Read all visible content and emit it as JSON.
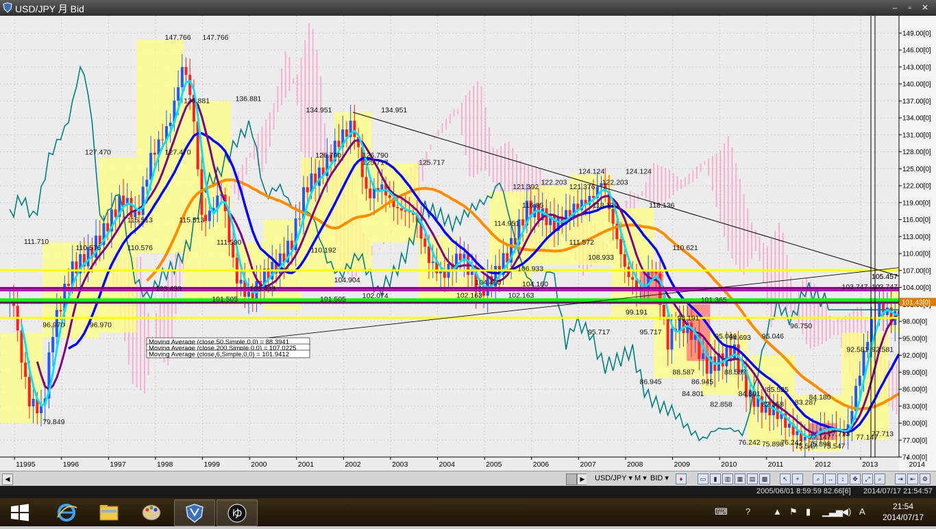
{
  "window": {
    "title": "USD/JPY 月 Bid",
    "btn_min": "‒",
    "btn_restore": "▫",
    "btn_close": "✕"
  },
  "chart_data": {
    "type": "candlestick",
    "symbol": "USD/JPY",
    "timeframe": "月",
    "price_side": "Bid",
    "current_price_label": "101.43[0]",
    "y_ticks": [
      "149.00[0]",
      "146.00[0]",
      "143.00[0]",
      "140.00[0]",
      "137.00[0]",
      "134.00[0]",
      "131.00[0]",
      "128.00[0]",
      "125.00[0]",
      "122.00[0]",
      "119.00[0]",
      "116.00[0]",
      "113.00[0]",
      "110.00[0]",
      "107.00[0]",
      "104.00[0]",
      "101.00[0]",
      "98.00[0]",
      "95.00[0]",
      "92.00[0]",
      "89.00[0]",
      "86.00[0]",
      "83.00[0]",
      "80.00[0]",
      "77.00[0]",
      "74.00[0]"
    ],
    "x_ticks": [
      "11995",
      "1996",
      "1997",
      "1998",
      "1999",
      "2000",
      "2001",
      "2002",
      "2003",
      "2004",
      "2005",
      "2006",
      "2007",
      "2008",
      "2009",
      "2010",
      "2011",
      "2012",
      "2013",
      "2014"
    ],
    "ylim": [
      74,
      150
    ],
    "price_labels": [
      "147.766",
      "147.766",
      "136.881",
      "136.881",
      "127.470",
      "127.470",
      "134.951",
      "134.951",
      "126.790",
      "126.790",
      "125.717",
      "125.717",
      "124.124",
      "124.124",
      "122.203",
      "122.203",
      "121.392",
      "121.376",
      "118.136",
      "118.136",
      "116.85",
      "115.513",
      "115.513",
      "114.951",
      "111.710",
      "111.590",
      "111.572",
      "110.621",
      "110.576",
      "110.576",
      "110.192",
      "108.933",
      "106.933",
      "105.457",
      "105.457",
      "103.747",
      "103.747",
      "103.433",
      "103.433",
      "101.505",
      "101.505",
      "101.365",
      "102.074",
      "102.163",
      "102.163",
      "104.160",
      "104.460",
      "104.904",
      "99.191",
      "98.191",
      "96.970",
      "96.970",
      "96.750",
      "95.717",
      "95.717",
      "95.046",
      "95.046",
      "94.693",
      "92.581",
      "92.581",
      "88.587",
      "88.587",
      "86.945",
      "86.945",
      "85.525",
      "84.801",
      "84.801",
      "84.180",
      "83.287",
      "82.858",
      "82.858",
      "79.849",
      "77.713",
      "77.713",
      "77.147",
      "77.147",
      "76.242",
      "76.242",
      "75.898",
      "75.898",
      "75.547",
      "75.547"
    ],
    "tooltips": [
      "Moving Average (close,50,Simple,0,0) = 88.3941",
      "Moving Average (close,200,Simple,0,0) = 107.0225",
      "Moving Average (close,6,Simple,0,0) = 101.9412"
    ],
    "horizontal_lines": [
      {
        "price": 107.0,
        "color": "#ffff00"
      },
      {
        "price": 103.9,
        "color": "#800080"
      },
      {
        "price": 103.5,
        "color": "#c000c0"
      },
      {
        "price": 101.9,
        "color": "#00ff00"
      },
      {
        "price": 101.6,
        "color": "#00ff00"
      },
      {
        "price": 101.3,
        "color": "#800080"
      },
      {
        "price": 98.6,
        "color": "#ffff00"
      }
    ],
    "colors": {
      "background": "#ececec",
      "up_candle": "#1e5aff",
      "down_candle": "#ff2020",
      "box_fill": "#ffff80",
      "ma_fast": "#00e5ff",
      "ma_mid": "#800080",
      "ma_slow": "#0000ff",
      "ma_long": "#ff8c00",
      "lagging": "#008080",
      "cloud": "#ff80c0"
    }
  },
  "toolbar": {
    "symbol_select": "USD/JPY",
    "timeframe_select": "M",
    "side_select": "BID"
  },
  "status": {
    "cursor_info": "2005/06/01 8:59:59  82.66[6]",
    "server_time": "2014/07/17 21:54:57"
  },
  "taskbar": {
    "clock_time": "21:54",
    "clock_date": "2014/07/17",
    "ime_label": "A"
  }
}
